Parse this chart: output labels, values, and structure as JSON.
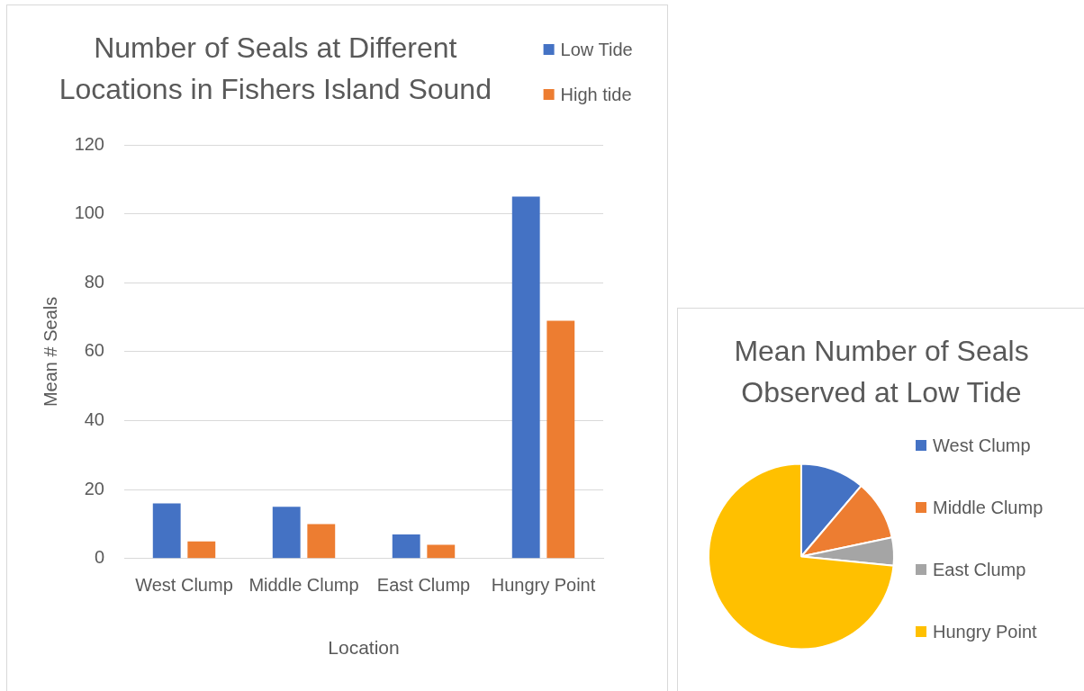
{
  "chart_data": [
    {
      "type": "bar",
      "title": "Number of Seals at Different Locations in Fishers Island Sound",
      "xlabel": "Location",
      "ylabel": "Mean # Seals",
      "categories": [
        "West Clump",
        "Middle Clump",
        "East Clump",
        "Hungry Point"
      ],
      "series": [
        {
          "name": "Low Tide",
          "color": "#4472c4",
          "values": [
            16,
            15,
            7,
            105
          ]
        },
        {
          "name": "High tide",
          "color": "#ed7d31",
          "values": [
            5,
            10,
            4,
            69
          ]
        }
      ],
      "ylim": [
        0,
        120
      ],
      "yticks": [
        0,
        20,
        40,
        60,
        80,
        100,
        120
      ],
      "grid": "y",
      "legend": "top right"
    },
    {
      "type": "pie",
      "title": "Mean Number of Seals Observed at Low Tide",
      "categories": [
        "West Clump",
        "Middle Clump",
        "East Clump",
        "Hungry Point"
      ],
      "values": [
        11.2,
        10.5,
        4.9,
        73.4
      ],
      "colors": [
        "#4472c4",
        "#ed7d31",
        "#a5a5a5",
        "#ffc000"
      ],
      "legend": "right"
    }
  ]
}
